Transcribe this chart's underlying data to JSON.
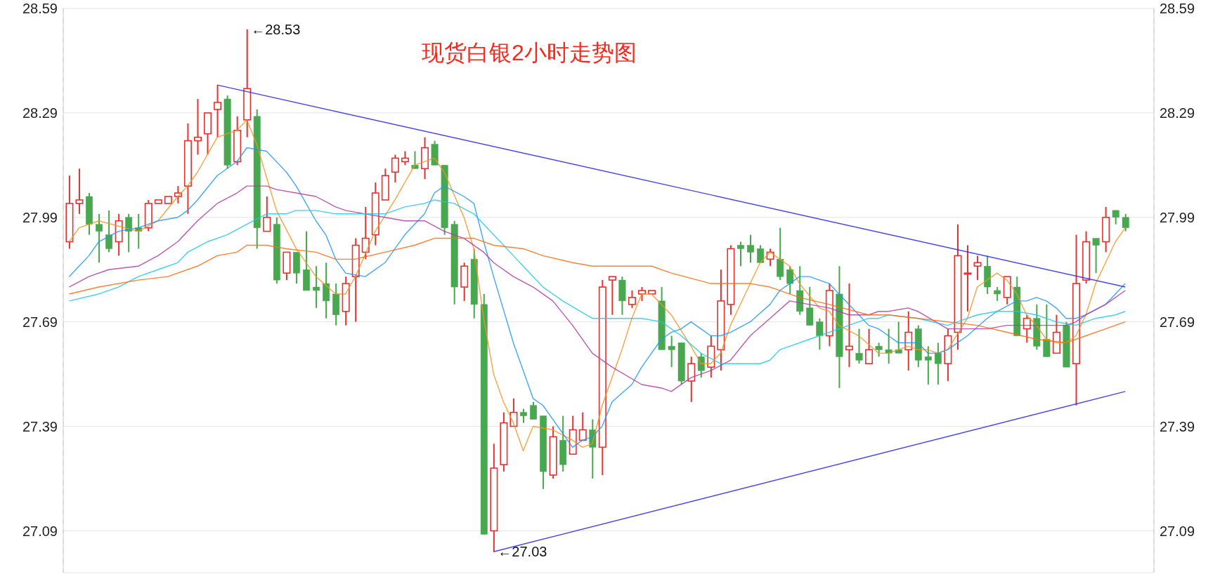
{
  "chart_data": {
    "type": "candlestick",
    "title": "现货白银2小时走势图",
    "categories": [
      null,
      null,
      null,
      null,
      null,
      null,
      null,
      null,
      null,
      null,
      null,
      null,
      null,
      null,
      null,
      null,
      null,
      null,
      null,
      null,
      null,
      null,
      null,
      null,
      null,
      null,
      null,
      null,
      null,
      null,
      null,
      null,
      null,
      null,
      null,
      null,
      null,
      null,
      null,
      null,
      null,
      null,
      null,
      null,
      null,
      null,
      null,
      null,
      null,
      null,
      null,
      null,
      null,
      null,
      null,
      null,
      null,
      null,
      null,
      null,
      null,
      null,
      null,
      null,
      null,
      null,
      null,
      null,
      null,
      null,
      null,
      null,
      null,
      null,
      null,
      null,
      null,
      null,
      null,
      null,
      null,
      null,
      null,
      null,
      null,
      null,
      null,
      null,
      null,
      null,
      null,
      null,
      null,
      null,
      null,
      null,
      null,
      null,
      null,
      null,
      null,
      null,
      null,
      null,
      null,
      null,
      null,
      null
    ],
    "ohlc": [
      [
        27.92,
        28.11,
        27.9,
        28.03
      ],
      [
        28.03,
        28.13,
        28.0,
        28.04
      ],
      [
        28.05,
        28.06,
        27.94,
        27.97
      ],
      [
        27.97,
        28.0,
        27.86,
        27.95
      ],
      [
        27.94,
        28.01,
        27.89,
        27.9
      ],
      [
        27.92,
        28.0,
        27.88,
        27.98
      ],
      [
        27.99,
        28.0,
        27.89,
        27.95
      ],
      [
        27.96,
        28.0,
        27.9,
        27.95
      ],
      [
        27.96,
        28.04,
        27.95,
        28.03
      ],
      [
        28.03,
        28.04,
        28.03,
        28.04
      ],
      [
        28.03,
        28.05,
        28.03,
        28.05
      ],
      [
        28.05,
        28.08,
        28.03,
        28.06
      ],
      [
        28.08,
        28.26,
        28.0,
        28.21
      ],
      [
        28.21,
        28.33,
        28.17,
        28.22
      ],
      [
        28.23,
        28.29,
        28.17,
        28.29
      ],
      [
        28.3,
        28.37,
        28.22,
        28.32
      ],
      [
        28.33,
        28.34,
        28.13,
        28.14
      ],
      [
        28.15,
        28.28,
        28.14,
        28.24
      ],
      [
        28.27,
        28.53,
        28.22,
        28.36
      ],
      [
        28.28,
        28.3,
        27.9,
        27.96
      ],
      [
        27.95,
        28.05,
        27.95,
        27.99
      ],
      [
        27.97,
        27.99,
        27.8,
        27.81
      ],
      [
        27.83,
        27.89,
        27.81,
        27.89
      ],
      [
        27.89,
        27.89,
        27.8,
        27.83
      ],
      [
        27.84,
        27.95,
        27.78,
        27.78
      ],
      [
        27.79,
        27.85,
        27.73,
        27.78
      ],
      [
        27.8,
        27.86,
        27.7,
        27.75
      ],
      [
        27.77,
        27.8,
        27.68,
        27.71
      ],
      [
        27.72,
        27.82,
        27.68,
        27.8
      ],
      [
        27.82,
        27.93,
        27.69,
        27.91
      ],
      [
        27.89,
        28.02,
        27.87,
        27.93
      ],
      [
        27.94,
        28.09,
        27.91,
        28.06
      ],
      [
        28.04,
        28.13,
        28.04,
        28.11
      ],
      [
        28.12,
        28.17,
        28.09,
        28.16
      ],
      [
        28.15,
        28.18,
        28.14,
        28.16
      ],
      [
        28.14,
        28.18,
        28.13,
        28.13
      ],
      [
        28.13,
        28.22,
        28.1,
        28.19
      ],
      [
        28.2,
        28.21,
        28.14,
        28.14
      ],
      [
        28.14,
        28.14,
        27.94,
        27.96
      ],
      [
        27.97,
        27.98,
        27.74,
        27.79
      ],
      [
        27.79,
        27.86,
        27.75,
        27.85
      ],
      [
        27.87,
        27.9,
        27.7,
        27.74
      ],
      [
        27.74,
        27.77,
        27.08,
        27.08
      ],
      [
        27.09,
        27.34,
        27.03,
        27.27
      ],
      [
        27.28,
        27.43,
        27.26,
        27.4
      ],
      [
        27.39,
        27.47,
        27.39,
        27.43
      ],
      [
        27.43,
        27.44,
        27.4,
        27.42
      ],
      [
        27.45,
        27.46,
        27.41,
        27.41
      ],
      [
        27.42,
        27.42,
        27.21,
        27.26
      ],
      [
        27.25,
        27.39,
        27.24,
        27.36
      ],
      [
        27.35,
        27.42,
        27.26,
        27.28
      ],
      [
        27.31,
        27.42,
        27.31,
        27.38
      ],
      [
        27.35,
        27.43,
        27.35,
        27.38
      ],
      [
        27.38,
        27.41,
        27.24,
        27.33
      ],
      [
        27.33,
        27.81,
        27.25,
        27.79
      ],
      [
        27.81,
        27.82,
        27.71,
        27.82
      ],
      [
        27.81,
        27.82,
        27.71,
        27.75
      ],
      [
        27.74,
        27.78,
        27.73,
        27.76
      ],
      [
        27.77,
        27.79,
        27.75,
        27.78
      ],
      [
        27.77,
        27.78,
        27.77,
        27.78
      ],
      [
        27.75,
        27.79,
        27.61,
        27.61
      ],
      [
        27.62,
        27.65,
        27.56,
        27.61
      ],
      [
        27.63,
        27.63,
        27.51,
        27.52
      ],
      [
        27.52,
        27.59,
        27.46,
        27.57
      ],
      [
        27.59,
        27.6,
        27.53,
        27.55
      ],
      [
        27.56,
        27.65,
        27.53,
        27.62
      ],
      [
        27.61,
        27.84,
        27.55,
        27.75
      ],
      [
        27.74,
        27.91,
        27.71,
        27.9
      ],
      [
        27.91,
        27.92,
        27.85,
        27.9
      ],
      [
        27.91,
        27.94,
        27.86,
        27.89
      ],
      [
        27.9,
        27.91,
        27.86,
        27.86
      ],
      [
        27.87,
        27.9,
        27.85,
        27.89
      ],
      [
        27.87,
        27.96,
        27.81,
        27.82
      ],
      [
        27.84,
        27.85,
        27.77,
        27.8
      ],
      [
        27.78,
        27.85,
        27.71,
        27.72
      ],
      [
        27.73,
        27.79,
        27.68,
        27.68
      ],
      [
        27.69,
        27.7,
        27.61,
        27.65
      ],
      [
        27.65,
        27.8,
        27.62,
        27.78
      ],
      [
        27.77,
        27.85,
        27.5,
        27.59
      ],
      [
        27.61,
        27.8,
        27.56,
        27.62
      ],
      [
        27.6,
        27.67,
        27.57,
        27.58
      ],
      [
        27.57,
        27.67,
        27.57,
        27.61
      ],
      [
        27.62,
        27.63,
        27.59,
        27.61
      ],
      [
        27.61,
        27.67,
        27.57,
        27.6
      ],
      [
        27.61,
        27.69,
        27.6,
        27.6
      ],
      [
        27.61,
        27.72,
        27.55,
        27.66
      ],
      [
        27.67,
        27.68,
        27.56,
        27.58
      ],
      [
        27.59,
        27.62,
        27.51,
        27.58
      ],
      [
        27.6,
        27.63,
        27.51,
        27.57
      ],
      [
        27.57,
        27.67,
        27.52,
        27.65
      ],
      [
        27.66,
        27.97,
        27.61,
        27.88
      ],
      [
        27.83,
        27.91,
        27.72,
        27.83
      ],
      [
        27.85,
        27.88,
        27.81,
        27.86
      ],
      [
        27.85,
        27.88,
        27.77,
        27.79
      ],
      [
        27.78,
        27.79,
        27.75,
        27.77
      ],
      [
        27.76,
        27.82,
        27.74,
        27.82
      ],
      [
        27.79,
        27.82,
        27.65,
        27.65
      ],
      [
        27.67,
        27.71,
        27.63,
        27.7
      ],
      [
        27.7,
        27.74,
        27.61,
        27.62
      ],
      [
        27.64,
        27.74,
        27.59,
        27.59
      ],
      [
        27.6,
        27.71,
        27.6,
        27.66
      ],
      [
        27.68,
        27.69,
        27.56,
        27.56
      ],
      [
        27.57,
        27.94,
        27.45,
        27.8
      ],
      [
        27.81,
        27.95,
        27.8,
        27.92
      ],
      [
        27.93,
        27.93,
        27.83,
        27.91
      ],
      [
        27.92,
        28.02,
        27.89,
        27.99
      ],
      [
        28.01,
        28.01,
        27.97,
        27.99
      ],
      [
        27.99,
        28.0,
        27.95,
        27.96
      ]
    ],
    "colors": [
      "#e83030",
      "#e83030",
      "#48a84f",
      "#48a84f",
      "#48a84f",
      "#e83030",
      "#48a84f",
      "#48a84f",
      "#e83030",
      "#e83030",
      "#e83030",
      "#e83030",
      "#e83030",
      "#e83030",
      "#e83030",
      "#e83030",
      "#48a84f",
      "#e83030",
      "#e83030",
      "#48a84f",
      "#e83030",
      "#48a84f",
      "#e83030",
      "#48a84f",
      "#48a84f",
      "#48a84f",
      "#48a84f",
      "#48a84f",
      "#e83030",
      "#e83030",
      "#e83030",
      "#e83030",
      "#e83030",
      "#e83030",
      "#e83030",
      "#48a84f",
      "#e83030",
      "#48a84f",
      "#48a84f",
      "#48a84f",
      "#e83030",
      "#48a84f",
      "#48a84f",
      "#e83030",
      "#e83030",
      "#e83030",
      "#48a84f",
      "#48a84f",
      "#48a84f",
      "#e83030",
      "#48a84f",
      "#e83030",
      "#e83030",
      "#48a84f",
      "#e83030",
      "#e83030",
      "#48a84f",
      "#e83030",
      "#e83030",
      "#e83030",
      "#48a84f",
      "#48a84f",
      "#48a84f",
      "#e83030",
      "#48a84f",
      "#e83030",
      "#e83030",
      "#e83030",
      "#48a84f",
      "#48a84f",
      "#48a84f",
      "#e83030",
      "#48a84f",
      "#48a84f",
      "#48a84f",
      "#48a84f",
      "#48a84f",
      "#e83030",
      "#48a84f",
      "#e83030",
      "#48a84f",
      "#e83030",
      "#48a84f",
      "#48a84f",
      "#48a84f",
      "#e83030",
      "#48a84f",
      "#48a84f",
      "#48a84f",
      "#e83030",
      "#e83030",
      "#e83030",
      "#e83030",
      "#48a84f",
      "#48a84f",
      "#e83030",
      "#48a84f",
      "#e83030",
      "#48a84f",
      "#48a84f",
      "#e83030",
      "#48a84f",
      "#e83030",
      "#e83030",
      "#48a84f",
      "#e83030",
      "#48a84f",
      "#48a84f"
    ],
    "series": [
      {
        "type": "line",
        "color": "#f7931e",
        "values": [
          27.92,
          27.96,
          null,
          27.98,
          null,
          null,
          null,
          27.95,
          null,
          27.98,
          null,
          28.05,
          28.08,
          28.12,
          null,
          28.22,
          28.23,
          28.24,
          28.27,
          28.2,
          null,
          28.01,
          null,
          27.9,
          null,
          27.82,
          null,
          27.77,
          27.77,
          27.82,
          null,
          27.95,
          null,
          28.04,
          null,
          28.14,
          null,
          28.16,
          28.12,
          null,
          27.99,
          27.9,
          27.7,
          27.54,
          27.46,
          27.4,
          27.32,
          27.39,
          null,
          27.38,
          null,
          27.35,
          27.33,
          27.34,
          27.45,
          null,
          27.61,
          27.7,
          27.77,
          27.77,
          null,
          27.71,
          null,
          27.62,
          27.57,
          27.57,
          27.6,
          27.68,
          null,
          27.8,
          27.86,
          27.89,
          27.87,
          27.85,
          27.8,
          null,
          27.73,
          27.72,
          27.68,
          null,
          27.65,
          null,
          27.6,
          27.6,
          null,
          27.62,
          27.61,
          27.61,
          27.6,
          27.61,
          null,
          27.7,
          27.79,
          null,
          27.83,
          27.81,
          27.77,
          27.71,
          27.68,
          27.64,
          27.63,
          27.63,
          27.65,
          27.71,
          27.8,
          27.86,
          27.92,
          27.96
        ]
      },
      {
        "type": "line",
        "color": "#2196f3",
        "values": [
          27.82,
          27.85,
          27.88,
          27.92,
          null,
          27.95,
          null,
          27.96,
          null,
          27.98,
          null,
          27.99,
          28.01,
          28.04,
          null,
          28.11,
          28.13,
          28.15,
          28.19,
          null,
          28.18,
          28.15,
          28.12,
          28.08,
          null,
          27.98,
          27.94,
          27.87,
          27.83,
          null,
          27.82,
          null,
          27.86,
          null,
          27.94,
          null,
          28.0,
          28.06,
          28.08,
          null,
          28.05,
          28.03,
          27.92,
          27.82,
          null,
          27.63,
          null,
          27.47,
          27.45,
          27.41,
          27.37,
          27.33,
          27.35,
          27.36,
          27.39,
          27.46,
          null,
          27.51,
          27.56,
          null,
          27.64,
          27.66,
          27.67,
          27.69,
          27.67,
          27.65,
          27.65,
          27.66,
          null,
          27.69,
          null,
          27.74,
          27.78,
          27.8,
          27.82,
          27.82,
          27.81,
          27.8,
          27.77,
          null,
          27.71,
          27.68,
          27.67,
          27.65,
          27.63,
          27.63,
          27.63,
          27.6,
          27.6,
          27.61,
          27.63,
          27.65,
          null,
          27.7,
          27.72,
          null,
          27.75,
          27.75,
          27.76,
          27.75,
          27.73,
          27.7,
          27.7,
          27.71,
          null,
          27.74,
          27.77,
          27.8
        ]
      },
      {
        "type": "line",
        "color": "#b23aa8",
        "values": [
          27.79,
          null,
          27.82,
          null,
          27.84,
          null,
          null,
          27.85,
          null,
          27.88,
          null,
          27.92,
          null,
          27.98,
          null,
          28.03,
          null,
          28.06,
          28.08,
          null,
          28.08,
          28.07,
          null,
          28.06,
          null,
          28.05,
          null,
          28.02,
          28.01,
          null,
          28.0,
          null,
          27.99,
          null,
          27.98,
          null,
          27.98,
          null,
          27.95,
          null,
          27.93,
          null,
          27.89,
          27.86,
          null,
          27.82,
          null,
          27.79,
          null,
          27.75,
          null,
          27.68,
          null,
          27.6,
          null,
          27.56,
          null,
          null,
          27.51,
          null,
          27.5,
          27.49,
          null,
          27.53,
          null,
          27.55,
          null,
          27.58,
          null,
          27.65,
          null,
          27.7,
          null,
          27.75,
          null,
          27.74,
          null,
          27.73,
          null,
          27.71,
          null,
          27.71,
          27.72,
          27.72,
          null,
          27.73,
          27.72,
          null,
          null,
          27.67,
          null,
          27.67,
          null,
          27.67,
          null,
          27.68,
          null,
          27.68,
          null,
          27.68,
          null,
          27.68,
          27.69,
          27.71,
          null,
          27.74,
          null,
          27.78
        ]
      },
      {
        "type": "line",
        "color": "#1ec8e6",
        "values": [
          27.75,
          null,
          null,
          27.77,
          null,
          27.79,
          null,
          27.82,
          null,
          27.84,
          null,
          27.86,
          27.89,
          null,
          27.92,
          null,
          27.94,
          null,
          27.97,
          null,
          28.0,
          null,
          28.0,
          28.01,
          null,
          28.01,
          null,
          28.0,
          28.0,
          null,
          28.0,
          null,
          28.0,
          null,
          28.02,
          null,
          28.03,
          28.04,
          null,
          28.03,
          null,
          28.0,
          null,
          27.94,
          null,
          27.88,
          null,
          27.82,
          27.79,
          null,
          27.75,
          null,
          null,
          27.7,
          null,
          27.7,
          null,
          27.7,
          27.7,
          null,
          27.69,
          null,
          27.65,
          null,
          27.6,
          null,
          27.57,
          null,
          27.57,
          null,
          27.57,
          27.58,
          27.61,
          27.62,
          null,
          27.64,
          null,
          27.66,
          null,
          27.68,
          null,
          27.7,
          27.7,
          27.71,
          null,
          null,
          27.7,
          null,
          null,
          27.68,
          27.69,
          null,
          27.71,
          null,
          27.72,
          null,
          27.72,
          null,
          27.71,
          null,
          27.69,
          null,
          27.68,
          null,
          27.7,
          null,
          27.71,
          27.72
        ]
      },
      {
        "type": "line",
        "color": "#ff6a10",
        "values": [
          27.77,
          null,
          null,
          27.79,
          null,
          null,
          null,
          27.81,
          null,
          null,
          27.82,
          null,
          null,
          27.85,
          null,
          27.88,
          null,
          27.89,
          27.91,
          null,
          27.91,
          null,
          27.9,
          null,
          null,
          27.89,
          null,
          27.87,
          null,
          27.87,
          null,
          null,
          27.89,
          null,
          null,
          27.91,
          null,
          27.93,
          null,
          27.93,
          null,
          27.93,
          null,
          27.91,
          null,
          null,
          27.9,
          null,
          27.88,
          null,
          null,
          27.86,
          null,
          27.85,
          null,
          27.85,
          null,
          null,
          null,
          27.85,
          null,
          27.83,
          null,
          null,
          null,
          27.8,
          null,
          null,
          null,
          27.8,
          null,
          27.79,
          null,
          null,
          27.76,
          null,
          null,
          27.74,
          null,
          null,
          null,
          27.71,
          27.71,
          27.71,
          null,
          null,
          27.7,
          null,
          null,
          27.69,
          null,
          null,
          27.68,
          null,
          null,
          27.66,
          null,
          null,
          27.64,
          null,
          null,
          27.63,
          null,
          27.65,
          null,
          27.67,
          null,
          27.69
        ]
      },
      {
        "type": "line",
        "color": "#2424ec",
        "values": [
          null,
          null,
          null,
          null,
          null,
          null,
          null,
          null,
          null,
          null,
          null,
          null,
          null,
          null,
          null,
          28.37,
          null,
          null,
          null,
          null,
          null,
          null,
          null,
          null,
          null,
          null,
          null,
          null,
          null,
          null,
          null,
          null,
          null,
          null,
          null,
          null,
          null,
          null,
          null,
          null,
          null,
          null,
          null,
          null,
          null,
          null,
          null,
          null,
          null,
          null,
          null,
          null,
          null,
          null,
          null,
          null,
          null,
          null,
          null,
          null,
          null,
          null,
          null,
          null,
          null,
          null,
          null,
          null,
          null,
          null,
          null,
          null,
          null,
          null,
          null,
          null,
          null,
          null,
          null,
          null,
          null,
          null,
          null,
          null,
          null,
          null,
          null,
          null,
          null,
          null,
          null,
          null,
          null,
          null,
          null,
          null,
          null,
          null,
          null,
          null,
          null,
          null,
          null,
          null,
          null,
          null,
          null,
          27.79
        ]
      },
      {
        "type": "line",
        "color": "#2424ec",
        "values": [
          null,
          null,
          null,
          null,
          null,
          null,
          null,
          null,
          null,
          null,
          null,
          null,
          null,
          null,
          null,
          null,
          null,
          null,
          null,
          null,
          null,
          null,
          null,
          null,
          null,
          null,
          null,
          null,
          null,
          null,
          null,
          null,
          null,
          null,
          null,
          null,
          null,
          null,
          null,
          null,
          null,
          null,
          null,
          27.03,
          null,
          null,
          null,
          null,
          null,
          null,
          null,
          null,
          null,
          null,
          null,
          null,
          null,
          null,
          null,
          null,
          null,
          null,
          null,
          null,
          null,
          null,
          null,
          null,
          null,
          null,
          null,
          null,
          null,
          null,
          null,
          null,
          null,
          null,
          null,
          null,
          null,
          null,
          null,
          null,
          null,
          null,
          null,
          null,
          null,
          null,
          null,
          null,
          null,
          null,
          null,
          null,
          null,
          null,
          null,
          null,
          null,
          null,
          null,
          null,
          null,
          null,
          null,
          27.49
        ]
      }
    ],
    "annotations": [
      "←28.53",
      "←27.03"
    ],
    "ylim": [
      26.97,
      28.59
    ],
    "yticks": [
      27.09,
      27.39,
      27.69,
      27.99,
      28.29,
      28.59
    ],
    "y2lim": [
      26.97,
      28.59
    ],
    "y2ticks": [
      27.09,
      27.39,
      27.69,
      27.99,
      28.29,
      28.59
    ],
    "tick_labels": "y",
    "grid": true
  }
}
